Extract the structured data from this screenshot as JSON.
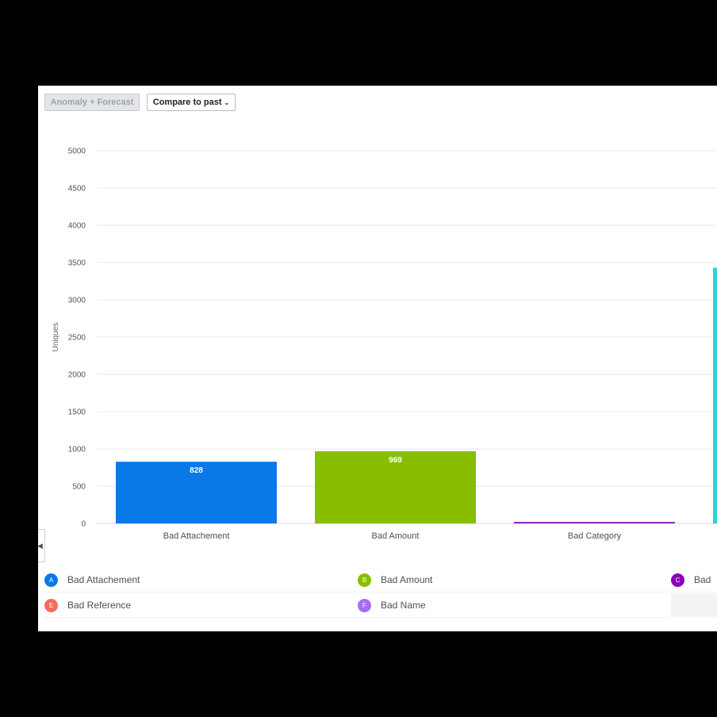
{
  "toolbar": {
    "anomaly_label": "Anomaly + Forecast",
    "compare_label": "Compare to past"
  },
  "chart_data": {
    "type": "bar",
    "ylabel": "Uniques",
    "xlabel": "",
    "ylim": [
      0,
      5000
    ],
    "yticks": [
      0,
      500,
      1000,
      1500,
      2000,
      2500,
      3000,
      3500,
      4000,
      4500,
      5000
    ],
    "grid": true,
    "categories": [
      "Bad Attachement",
      "Bad Amount",
      "Bad Category",
      ""
    ],
    "values": [
      828,
      969,
      18,
      3430
    ],
    "data_labels": [
      "828",
      "969",
      null,
      null
    ],
    "colors": [
      "#0a78e8",
      "#87bf00",
      "#8a2bc0",
      "#2ed3d3"
    ]
  },
  "legend": {
    "items": [
      {
        "letter": "A",
        "label": "Bad Attachement",
        "color": "#0a78e8"
      },
      {
        "letter": "B",
        "label": "Bad Amount",
        "color": "#87bf00"
      },
      {
        "letter": "C",
        "label": "Bad",
        "color": "#8a00b8"
      },
      {
        "letter": "E",
        "label": "Bad Reference",
        "color": "#f26d5b"
      },
      {
        "letter": "F",
        "label": "Bad Name",
        "color": "#a86ef0"
      }
    ]
  }
}
